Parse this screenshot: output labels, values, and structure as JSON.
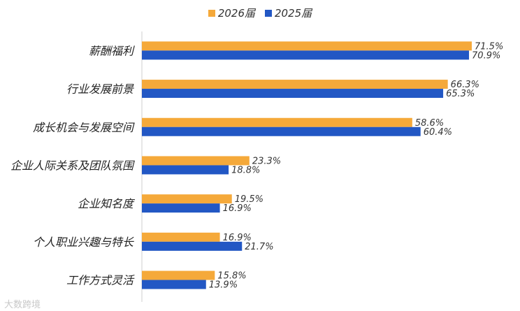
{
  "chart_data": {
    "type": "bar",
    "orientation": "horizontal",
    "categories": [
      "薪酬福利",
      "行业发展前景",
      "成长机会与发展空间",
      "企业人际关系及团队氛围",
      "企业知名度",
      "个人职业兴趣与特长",
      "工作方式灵活"
    ],
    "series": [
      {
        "name": "2026届",
        "color": "#F5A93A",
        "values": [
          71.5,
          66.3,
          58.6,
          23.3,
          19.5,
          16.9,
          15.8
        ],
        "labels": [
          "71.5%",
          "66.3%",
          "58.6%",
          "23.3%",
          "19.5%",
          "16.9%",
          "15.8%"
        ]
      },
      {
        "name": "2025届",
        "color": "#2257C4",
        "values": [
          70.9,
          65.3,
          60.4,
          18.8,
          16.9,
          21.7,
          13.9
        ],
        "labels": [
          "70.9%",
          "65.3%",
          "60.4%",
          "18.8%",
          "16.9%",
          "21.7%",
          "13.9%"
        ]
      }
    ],
    "xlim": [
      0,
      80
    ],
    "grid": false,
    "legend_position": "top-center"
  },
  "watermark": "大数跨境"
}
